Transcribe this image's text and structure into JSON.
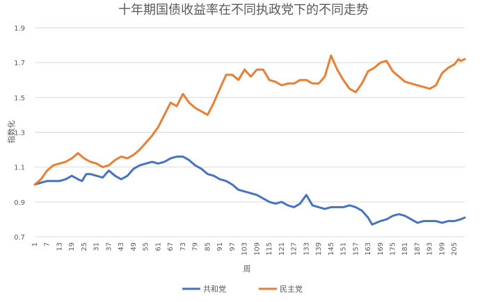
{
  "chart_data": {
    "type": "line",
    "title": "十年期国债收益率在不同执政党下的不同走势",
    "xlabel": "周",
    "ylabel": "指数化",
    "ylim": [
      0.7,
      1.9
    ],
    "yticks": [
      "0.7",
      "0.9",
      "1.1",
      "1.3",
      "1.5",
      "1.7",
      "1.9"
    ],
    "xticks": [
      1,
      7,
      13,
      19,
      25,
      31,
      37,
      43,
      49,
      55,
      61,
      67,
      73,
      79,
      85,
      91,
      97,
      103,
      109,
      115,
      121,
      127,
      133,
      139,
      145,
      151,
      157,
      163,
      169,
      175,
      181,
      187,
      193,
      199,
      205
    ],
    "xlim": [
      1,
      210
    ],
    "grid": "horizontal",
    "legend_position": "bottom",
    "series": [
      {
        "name": "共和党",
        "color": "#4472C4",
        "points": [
          [
            1,
            1.0
          ],
          [
            4,
            1.01
          ],
          [
            7,
            1.02
          ],
          [
            10,
            1.02
          ],
          [
            13,
            1.02
          ],
          [
            16,
            1.03
          ],
          [
            19,
            1.05
          ],
          [
            22,
            1.03
          ],
          [
            24,
            1.02
          ],
          [
            26,
            1.06
          ],
          [
            28,
            1.06
          ],
          [
            31,
            1.05
          ],
          [
            34,
            1.04
          ],
          [
            37,
            1.08
          ],
          [
            40,
            1.05
          ],
          [
            43,
            1.03
          ],
          [
            46,
            1.05
          ],
          [
            49,
            1.09
          ],
          [
            52,
            1.11
          ],
          [
            55,
            1.12
          ],
          [
            58,
            1.13
          ],
          [
            61,
            1.12
          ],
          [
            64,
            1.13
          ],
          [
            67,
            1.15
          ],
          [
            70,
            1.16
          ],
          [
            73,
            1.16
          ],
          [
            76,
            1.14
          ],
          [
            79,
            1.11
          ],
          [
            82,
            1.09
          ],
          [
            85,
            1.06
          ],
          [
            88,
            1.05
          ],
          [
            91,
            1.03
          ],
          [
            94,
            1.02
          ],
          [
            97,
            1.0
          ],
          [
            100,
            0.97
          ],
          [
            103,
            0.96
          ],
          [
            106,
            0.95
          ],
          [
            109,
            0.94
          ],
          [
            112,
            0.92
          ],
          [
            115,
            0.9
          ],
          [
            118,
            0.89
          ],
          [
            121,
            0.9
          ],
          [
            124,
            0.88
          ],
          [
            127,
            0.87
          ],
          [
            130,
            0.89
          ],
          [
            133,
            0.94
          ],
          [
            136,
            0.88
          ],
          [
            139,
            0.87
          ],
          [
            142,
            0.86
          ],
          [
            145,
            0.87
          ],
          [
            148,
            0.87
          ],
          [
            151,
            0.87
          ],
          [
            154,
            0.88
          ],
          [
            157,
            0.87
          ],
          [
            160,
            0.85
          ],
          [
            163,
            0.81
          ],
          [
            165,
            0.77
          ],
          [
            167,
            0.78
          ],
          [
            169,
            0.79
          ],
          [
            172,
            0.8
          ],
          [
            175,
            0.82
          ],
          [
            178,
            0.83
          ],
          [
            181,
            0.82
          ],
          [
            184,
            0.8
          ],
          [
            187,
            0.78
          ],
          [
            190,
            0.79
          ],
          [
            193,
            0.79
          ],
          [
            196,
            0.79
          ],
          [
            199,
            0.78
          ],
          [
            202,
            0.79
          ],
          [
            205,
            0.79
          ],
          [
            208,
            0.8
          ],
          [
            210,
            0.81
          ]
        ]
      },
      {
        "name": "民主党",
        "color": "#ED7D31",
        "points": [
          [
            1,
            1.0
          ],
          [
            4,
            1.03
          ],
          [
            7,
            1.08
          ],
          [
            10,
            1.11
          ],
          [
            13,
            1.12
          ],
          [
            16,
            1.13
          ],
          [
            19,
            1.15
          ],
          [
            22,
            1.18
          ],
          [
            25,
            1.15
          ],
          [
            28,
            1.13
          ],
          [
            31,
            1.12
          ],
          [
            34,
            1.1
          ],
          [
            37,
            1.11
          ],
          [
            40,
            1.14
          ],
          [
            43,
            1.16
          ],
          [
            46,
            1.15
          ],
          [
            49,
            1.17
          ],
          [
            52,
            1.2
          ],
          [
            55,
            1.24
          ],
          [
            58,
            1.28
          ],
          [
            61,
            1.33
          ],
          [
            64,
            1.4
          ],
          [
            67,
            1.47
          ],
          [
            70,
            1.45
          ],
          [
            73,
            1.52
          ],
          [
            76,
            1.47
          ],
          [
            79,
            1.44
          ],
          [
            82,
            1.42
          ],
          [
            85,
            1.4
          ],
          [
            88,
            1.47
          ],
          [
            91,
            1.55
          ],
          [
            94,
            1.63
          ],
          [
            97,
            1.63
          ],
          [
            100,
            1.6
          ],
          [
            103,
            1.66
          ],
          [
            106,
            1.62
          ],
          [
            109,
            1.66
          ],
          [
            112,
            1.66
          ],
          [
            115,
            1.6
          ],
          [
            118,
            1.59
          ],
          [
            121,
            1.57
          ],
          [
            124,
            1.58
          ],
          [
            127,
            1.58
          ],
          [
            130,
            1.6
          ],
          [
            133,
            1.6
          ],
          [
            136,
            1.58
          ],
          [
            139,
            1.58
          ],
          [
            142,
            1.62
          ],
          [
            145,
            1.74
          ],
          [
            148,
            1.66
          ],
          [
            151,
            1.6
          ],
          [
            154,
            1.55
          ],
          [
            157,
            1.53
          ],
          [
            160,
            1.58
          ],
          [
            163,
            1.65
          ],
          [
            166,
            1.67
          ],
          [
            169,
            1.7
          ],
          [
            172,
            1.71
          ],
          [
            175,
            1.65
          ],
          [
            178,
            1.62
          ],
          [
            181,
            1.59
          ],
          [
            184,
            1.58
          ],
          [
            187,
            1.57
          ],
          [
            190,
            1.56
          ],
          [
            193,
            1.55
          ],
          [
            196,
            1.57
          ],
          [
            199,
            1.64
          ],
          [
            202,
            1.67
          ],
          [
            205,
            1.69
          ],
          [
            207,
            1.72
          ],
          [
            208,
            1.71
          ],
          [
            210,
            1.72
          ]
        ]
      }
    ]
  }
}
